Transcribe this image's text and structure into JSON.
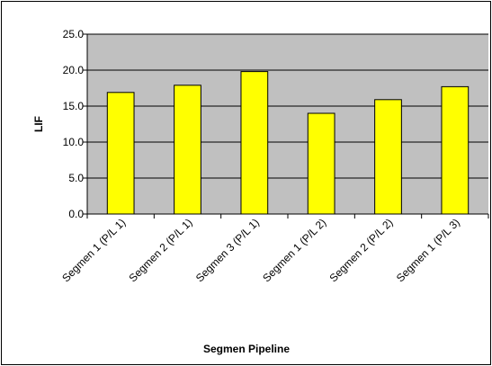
{
  "chart_data": {
    "type": "bar",
    "categories": [
      "Segmen 1 (P/L 1)",
      "Segmen 2 (P/L 1)",
      "Segmen 3 (P/L 1)",
      "Segmen 1 (P/L 2)",
      "Segmen 2 (P/L 2)",
      "Segmen 1 (P/L 3)"
    ],
    "values": [
      16.9,
      17.9,
      19.8,
      14.0,
      15.9,
      17.7
    ],
    "title": "",
    "xlabel": "Segmen Pipeline",
    "ylabel": "LIF",
    "ylim": [
      0,
      25
    ],
    "yticks": [
      "0.0",
      "5.0",
      "10.0",
      "15.0",
      "20.0",
      "25.0"
    ],
    "grid": true,
    "legend": "none",
    "colors": {
      "bar_fill": "#ffff00",
      "bar_stroke": "#000000",
      "plot_background": "#c0c0c0",
      "gridline": "#000000"
    }
  }
}
